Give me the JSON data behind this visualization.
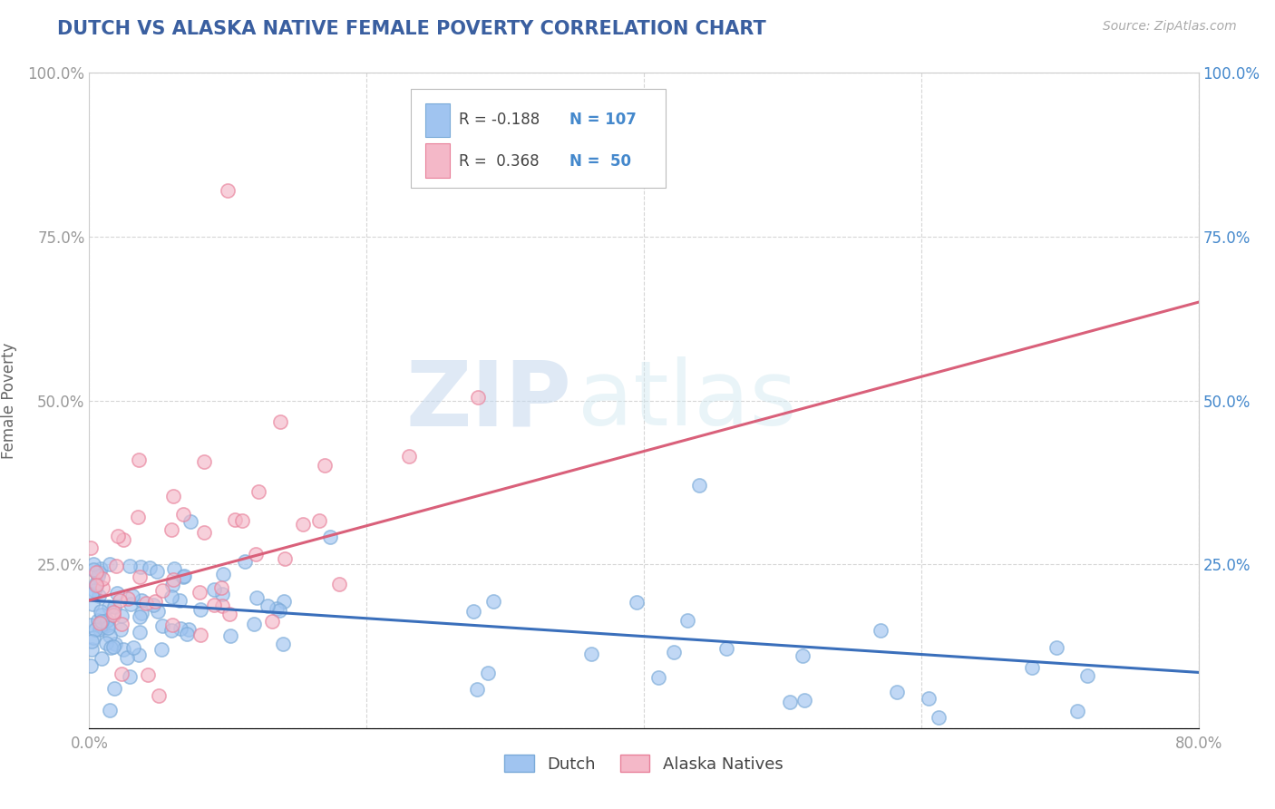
{
  "title": "DUTCH VS ALASKA NATIVE FEMALE POVERTY CORRELATION CHART",
  "source_text": "Source: ZipAtlas.com",
  "ylabel": "Female Poverty",
  "xlim": [
    0.0,
    0.8
  ],
  "ylim": [
    0.0,
    1.0
  ],
  "xticks": [
    0.0,
    0.2,
    0.4,
    0.6,
    0.8
  ],
  "xticklabels": [
    "0.0%",
    "",
    "",
    "",
    "80.0%"
  ],
  "yticks": [
    0.0,
    0.25,
    0.5,
    0.75,
    1.0
  ],
  "yticklabels_left": [
    "",
    "25.0%",
    "50.0%",
    "75.0%",
    "100.0%"
  ],
  "yticklabels_right": [
    "",
    "25.0%",
    "50.0%",
    "75.0%",
    "100.0%"
  ],
  "dutch_color": "#a0c4f0",
  "alaska_color": "#f4b8c8",
  "dutch_edge_color": "#7aaad8",
  "alaska_edge_color": "#e8809a",
  "dutch_line_color": "#3a6fbb",
  "alaska_line_color": "#d9607a",
  "title_color": "#3a5fa0",
  "right_tick_color": "#4488cc",
  "legend_label1": "Dutch",
  "legend_label2": "Alaska Natives",
  "watermark": "ZIPatlas",
  "dutch_trend_start": 0.195,
  "dutch_trend_end": 0.085,
  "alaska_trend_start": 0.195,
  "alaska_trend_end": 0.65,
  "background_color": "#ffffff",
  "grid_color": "#cccccc",
  "axis_color": "#999999"
}
